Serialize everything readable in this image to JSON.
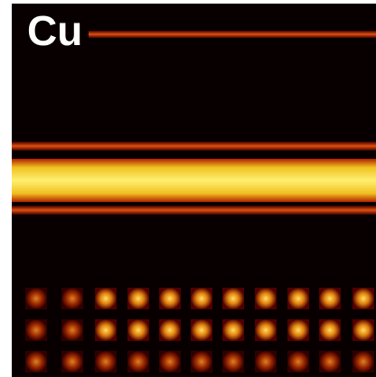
{
  "label": "Cu"
}
